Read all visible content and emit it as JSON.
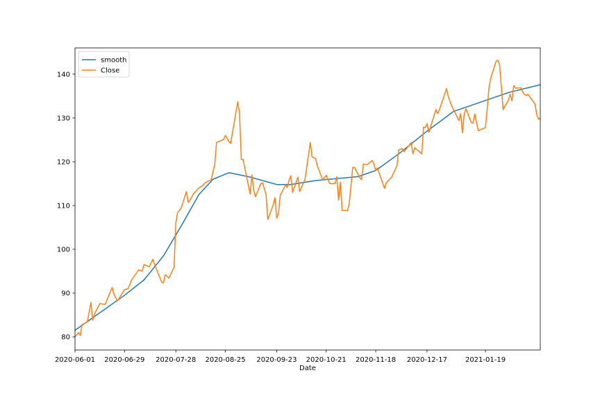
{
  "chart_data": {
    "type": "line",
    "title": "",
    "xlabel": "Date",
    "ylabel": "",
    "x_start": "2020-06-01",
    "x_end": "2021-02-19",
    "xlim": [
      "2020-06-01",
      "2021-02-19"
    ],
    "ylim": [
      77,
      146
    ],
    "grid": false,
    "legend_position": "top-left",
    "x_ticks": [
      "2020-06-01",
      "2020-06-29",
      "2020-07-28",
      "2020-08-25",
      "2020-09-23",
      "2020-10-21",
      "2020-11-18",
      "2020-12-17",
      "2021-01-19"
    ],
    "y_ticks": [
      80,
      90,
      100,
      110,
      120,
      130,
      140
    ],
    "series": [
      {
        "name": "smooth",
        "color": "#1f77b4",
        "points": [
          [
            "2020-06-01",
            81.5
          ],
          [
            "2020-06-15",
            85.5
          ],
          [
            "2020-06-29",
            89.5
          ],
          [
            "2020-07-10",
            93.0
          ],
          [
            "2020-07-21",
            98.5
          ],
          [
            "2020-08-01",
            106.0
          ],
          [
            "2020-08-10",
            112.5
          ],
          [
            "2020-08-18",
            116.0
          ],
          [
            "2020-08-27",
            117.5
          ],
          [
            "2020-09-08",
            116.5
          ],
          [
            "2020-09-23",
            114.8
          ],
          [
            "2020-10-01",
            114.8
          ],
          [
            "2020-10-15",
            115.7
          ],
          [
            "2020-10-28",
            116.2
          ],
          [
            "2020-11-08",
            116.6
          ],
          [
            "2020-11-18",
            118.0
          ],
          [
            "2020-12-01",
            121.8
          ],
          [
            "2020-12-17",
            127.0
          ],
          [
            "2021-01-01",
            131.5
          ],
          [
            "2021-01-19",
            134.0
          ],
          [
            "2021-02-01",
            135.8
          ],
          [
            "2021-02-19",
            137.6
          ]
        ]
      },
      {
        "name": "Close",
        "color": "#ff7f0e",
        "points": [
          [
            "2020-06-01",
            80.0
          ],
          [
            "2020-06-03",
            81.0
          ],
          [
            "2020-06-04",
            80.3
          ],
          [
            "2020-06-05",
            82.8
          ],
          [
            "2020-06-08",
            83.4
          ],
          [
            "2020-06-10",
            87.9
          ],
          [
            "2020-06-11",
            83.8
          ],
          [
            "2020-06-12",
            85.2
          ],
          [
            "2020-06-15",
            87.6
          ],
          [
            "2020-06-18",
            87.4
          ],
          [
            "2020-06-22",
            91.3
          ],
          [
            "2020-06-23",
            89.7
          ],
          [
            "2020-06-25",
            88.2
          ],
          [
            "2020-06-29",
            90.8
          ],
          [
            "2020-07-01",
            91.0
          ],
          [
            "2020-07-03",
            93.0
          ],
          [
            "2020-07-07",
            95.3
          ],
          [
            "2020-07-09",
            95.0
          ],
          [
            "2020-07-10",
            96.5
          ],
          [
            "2020-07-13",
            96.0
          ],
          [
            "2020-07-15",
            97.7
          ],
          [
            "2020-07-16",
            96.5
          ],
          [
            "2020-07-20",
            92.5
          ],
          [
            "2020-07-21",
            92.3
          ],
          [
            "2020-07-22",
            94.2
          ],
          [
            "2020-07-24",
            93.4
          ],
          [
            "2020-07-27",
            95.9
          ],
          [
            "2020-07-28",
            106.0
          ],
          [
            "2020-07-29",
            108.4
          ],
          [
            "2020-07-31",
            109.4
          ],
          [
            "2020-08-03",
            113.2
          ],
          [
            "2020-08-04",
            110.7
          ],
          [
            "2020-08-05",
            111.2
          ],
          [
            "2020-08-07",
            112.7
          ],
          [
            "2020-08-10",
            114.0
          ],
          [
            "2020-08-12",
            114.5
          ],
          [
            "2020-08-14",
            115.3
          ],
          [
            "2020-08-17",
            115.9
          ],
          [
            "2020-08-19",
            119.4
          ],
          [
            "2020-08-20",
            124.4
          ],
          [
            "2020-08-24",
            125.1
          ],
          [
            "2020-08-25",
            126.0
          ],
          [
            "2020-08-27",
            124.6
          ],
          [
            "2020-08-28",
            124.2
          ],
          [
            "2020-09-01",
            133.7
          ],
          [
            "2020-09-02",
            131.0
          ],
          [
            "2020-09-03",
            120.5
          ],
          [
            "2020-09-04",
            120.5
          ],
          [
            "2020-09-08",
            112.6
          ],
          [
            "2020-09-09",
            117.0
          ],
          [
            "2020-09-10",
            113.5
          ],
          [
            "2020-09-11",
            112.0
          ],
          [
            "2020-09-14",
            115.0
          ],
          [
            "2020-09-15",
            115.2
          ],
          [
            "2020-09-17",
            112.5
          ],
          [
            "2020-09-18",
            106.8
          ],
          [
            "2020-09-21",
            110.1
          ],
          [
            "2020-09-22",
            111.8
          ],
          [
            "2020-09-23",
            107.1
          ],
          [
            "2020-09-24",
            108.2
          ],
          [
            "2020-09-25",
            112.3
          ],
          [
            "2020-09-28",
            114.7
          ],
          [
            "2020-09-29",
            114.1
          ],
          [
            "2020-09-30",
            115.8
          ],
          [
            "2020-10-01",
            116.8
          ],
          [
            "2020-10-02",
            113.0
          ],
          [
            "2020-10-05",
            116.5
          ],
          [
            "2020-10-06",
            113.2
          ],
          [
            "2020-10-08",
            115.1
          ],
          [
            "2020-10-09",
            116.0
          ],
          [
            "2020-10-12",
            124.4
          ],
          [
            "2020-10-13",
            121.1
          ],
          [
            "2020-10-15",
            120.7
          ],
          [
            "2020-10-16",
            119.0
          ],
          [
            "2020-10-19",
            115.9
          ],
          [
            "2020-10-21",
            116.9
          ],
          [
            "2020-10-23",
            115.0
          ],
          [
            "2020-10-26",
            115.0
          ],
          [
            "2020-10-27",
            116.6
          ],
          [
            "2020-10-28",
            111.2
          ],
          [
            "2020-10-29",
            115.3
          ],
          [
            "2020-10-30",
            108.9
          ],
          [
            "2020-11-02",
            108.8
          ],
          [
            "2020-11-03",
            110.4
          ],
          [
            "2020-11-05",
            118.7
          ],
          [
            "2020-11-06",
            118.7
          ],
          [
            "2020-11-09",
            116.3
          ],
          [
            "2020-11-10",
            115.9
          ],
          [
            "2020-11-11",
            119.5
          ],
          [
            "2020-11-13",
            119.3
          ],
          [
            "2020-11-16",
            120.3
          ],
          [
            "2020-11-17",
            119.4
          ],
          [
            "2020-11-18",
            118.0
          ],
          [
            "2020-11-19",
            118.6
          ],
          [
            "2020-11-20",
            117.3
          ],
          [
            "2020-11-23",
            113.9
          ],
          [
            "2020-11-24",
            115.2
          ],
          [
            "2020-11-27",
            116.5
          ],
          [
            "2020-11-30",
            119.1
          ],
          [
            "2020-12-01",
            122.7
          ],
          [
            "2020-12-03",
            123.0
          ],
          [
            "2020-12-04",
            122.3
          ],
          [
            "2020-12-07",
            123.8
          ],
          [
            "2020-12-08",
            124.4
          ],
          [
            "2020-12-09",
            121.8
          ],
          [
            "2020-12-10",
            123.2
          ],
          [
            "2020-12-14",
            121.8
          ],
          [
            "2020-12-15",
            127.9
          ],
          [
            "2020-12-16",
            127.8
          ],
          [
            "2020-12-17",
            128.7
          ],
          [
            "2020-12-18",
            126.7
          ],
          [
            "2020-12-22",
            131.9
          ],
          [
            "2020-12-23",
            131.0
          ],
          [
            "2020-12-24",
            131.9
          ],
          [
            "2020-12-28",
            136.7
          ],
          [
            "2020-12-29",
            134.9
          ],
          [
            "2020-12-30",
            133.7
          ],
          [
            "2020-12-31",
            132.7
          ],
          [
            "2021-01-04",
            129.4
          ],
          [
            "2021-01-05",
            131.0
          ],
          [
            "2021-01-06",
            126.6
          ],
          [
            "2021-01-07",
            130.9
          ],
          [
            "2021-01-08",
            132.1
          ],
          [
            "2021-01-11",
            128.9
          ],
          [
            "2021-01-12",
            128.8
          ],
          [
            "2021-01-13",
            130.9
          ],
          [
            "2021-01-14",
            128.9
          ],
          [
            "2021-01-15",
            127.1
          ],
          [
            "2021-01-19",
            127.8
          ],
          [
            "2021-01-20",
            132.0
          ],
          [
            "2021-01-21",
            136.9
          ],
          [
            "2021-01-22",
            139.1
          ],
          [
            "2021-01-25",
            142.9
          ],
          [
            "2021-01-26",
            143.2
          ],
          [
            "2021-01-27",
            142.1
          ],
          [
            "2021-01-28",
            137.1
          ],
          [
            "2021-01-29",
            131.9
          ],
          [
            "2021-02-01",
            134.1
          ],
          [
            "2021-02-02",
            135.4
          ],
          [
            "2021-02-03",
            133.9
          ],
          [
            "2021-02-04",
            137.4
          ],
          [
            "2021-02-05",
            136.8
          ],
          [
            "2021-02-08",
            136.9
          ],
          [
            "2021-02-09",
            136.0
          ],
          [
            "2021-02-10",
            135.4
          ],
          [
            "2021-02-11",
            135.1
          ],
          [
            "2021-02-12",
            135.4
          ],
          [
            "2021-02-16",
            133.2
          ],
          [
            "2021-02-17",
            130.8
          ],
          [
            "2021-02-18",
            129.7
          ],
          [
            "2021-02-19",
            129.9
          ]
        ]
      }
    ]
  }
}
